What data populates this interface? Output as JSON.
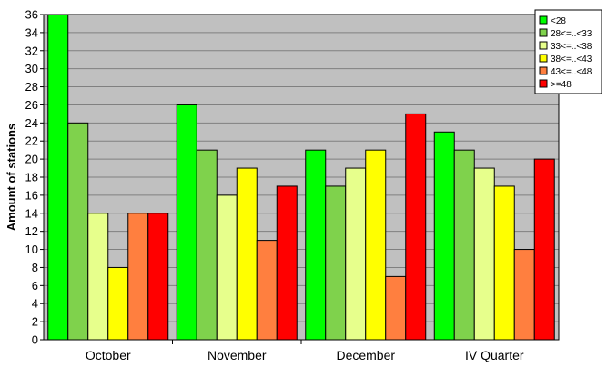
{
  "chart_data": {
    "type": "bar",
    "ylabel": "Amount of stations",
    "xlabel": "",
    "categories": [
      "October",
      "November",
      "December",
      "IV Quarter"
    ],
    "ylim": [
      0,
      36
    ],
    "ytick_step": 2,
    "grid": true,
    "legend_position": "top-right",
    "background_color": "#c0c0c0",
    "series": [
      {
        "name": "<28",
        "color": "#00ff00",
        "values": [
          36,
          26,
          21,
          23
        ]
      },
      {
        "name": "28<=..<33",
        "color": "#7fd24c",
        "values": [
          24,
          21,
          17,
          21
        ]
      },
      {
        "name": "33<=..<38",
        "color": "#e7ff8c",
        "values": [
          14,
          16,
          19,
          19
        ]
      },
      {
        "name": "38<=..<43",
        "color": "#ffff00",
        "values": [
          8,
          19,
          21,
          17
        ]
      },
      {
        "name": "43<=..<48",
        "color": "#ff7f3f",
        "values": [
          14,
          11,
          7,
          10
        ]
      },
      {
        "name": ">=48",
        "color": "#ff0000",
        "values": [
          14,
          17,
          25,
          20
        ]
      }
    ]
  }
}
